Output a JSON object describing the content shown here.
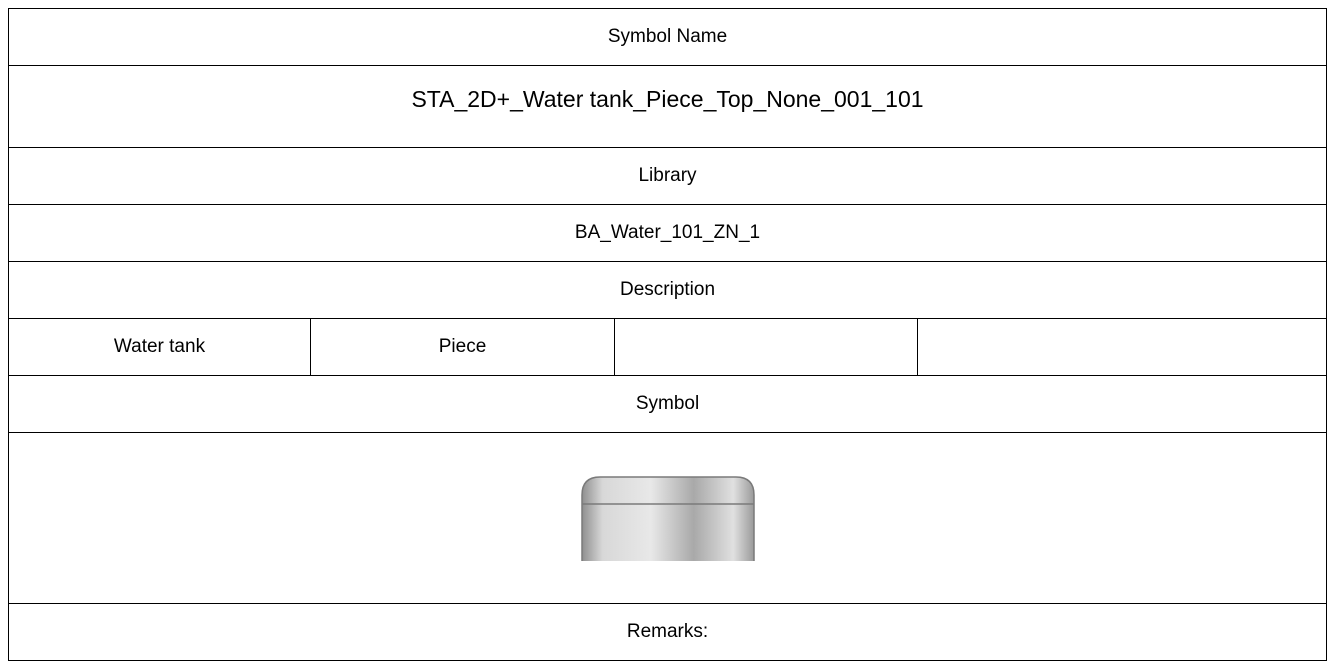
{
  "table": {
    "symbol_name_label": "Symbol Name",
    "symbol_name": "STA_2D+_Water tank_Piece_Top_None_001_101",
    "library_label": "Library",
    "library": "BA_Water_101_ZN_1",
    "description_label": "Description",
    "description": [
      "Water tank",
      "Piece"
    ],
    "symbol_label": "Symbol",
    "remarks_label": "Remarks:"
  }
}
